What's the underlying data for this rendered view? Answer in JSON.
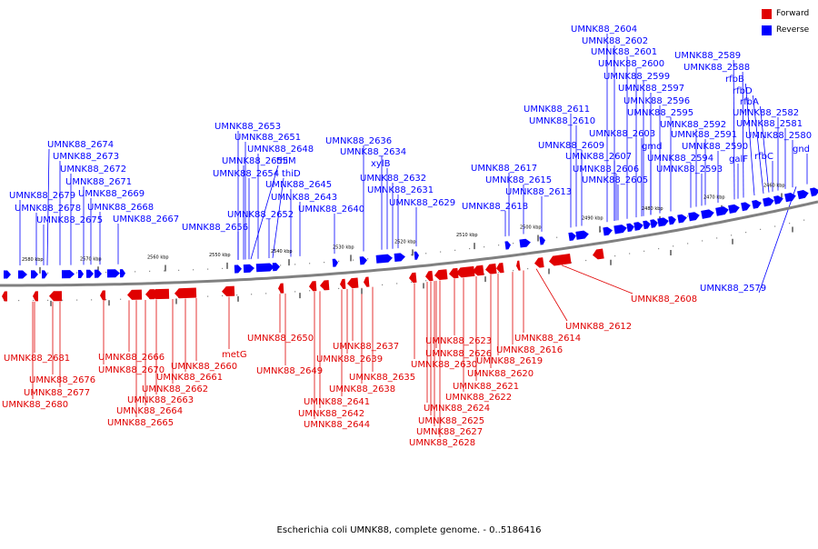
{
  "colors": {
    "forward": "#e00000",
    "reverse": "#0000ff",
    "backbone": "#808080",
    "tick": "#000000"
  },
  "legend": [
    {
      "label": "Forward",
      "color": "#e00000"
    },
    {
      "label": "Reverse",
      "color": "#0000ff"
    }
  ],
  "caption": "Escherichia coli UMNK88, complete genome. - 0..5186416",
  "scale_labels": [
    "2580 kbp",
    "2570 kbp",
    "2560 kbp",
    "2550 kbp",
    "2540 kbp",
    "2530 kbp",
    "2520 kbp",
    "2510 kbp",
    "2500 kbp",
    "2490 kbp",
    "2480 kbp",
    "2470 kbp",
    "2460 kbp"
  ],
  "reverse_labels": [
    "UMNK88_2674",
    "UMNK88_2673",
    "UMNK88_2672",
    "UMNK88_2671",
    "UMNK88_2679",
    "UMNK88_2669",
    "UMNK88_2678",
    "UMNK88_2668",
    "UMNK88_2675",
    "UMNK88_2667",
    "UMNK88_2653",
    "UMNK88_2651",
    "UMNK88_2648",
    "UMNK88_2655",
    "thiM",
    "UMNK88_2654",
    "thiD",
    "UMNK88_2645",
    "UMNK88_2643",
    "UMNK88_2652",
    "UMNK88_2656",
    "UMNK88_2640",
    "UMNK88_2636",
    "UMNK88_2634",
    "xylB",
    "UMNK88_2632",
    "UMNK88_2631",
    "UMNK88_2629",
    "UMNK88_2617",
    "UMNK88_2615",
    "UMNK88_2613",
    "UMNK88_2618",
    "UMNK88_2611",
    "UMNK88_2610",
    "UMNK88_2609",
    "UMNK88_2604",
    "UMNK88_2602",
    "UMNK88_2601",
    "UMNK88_2600",
    "UMNK88_2599",
    "UMNK88_2597",
    "UMNK88_2596",
    "UMNK88_2595",
    "UMNK88_2603",
    "gmd",
    "UMNK88_2607",
    "UMNK88_2606",
    "UMNK88_2605",
    "UMNK88_2589",
    "UMNK88_2588",
    "rfbB",
    "rfbD",
    "rfbA",
    "UMNK88_2582",
    "UMNK88_2592",
    "UMNK88_2581",
    "UMNK88_2591",
    "UMNK88_2580",
    "UMNK88_2590",
    "gnd",
    "UMNK88_2594",
    "galF",
    "rfbC",
    "UMNK88_2593",
    "UMNK88_2579"
  ],
  "forward_labels": [
    "UMNK88_2681",
    "UMNK88_2676",
    "UMNK88_2677",
    "UMNK88_2680",
    "UMNK88_2666",
    "UMNK88_2670",
    "UMNK88_2660",
    "UMNK88_2661",
    "UMNK88_2662",
    "UMNK88_2663",
    "UMNK88_2664",
    "UMNK88_2665",
    "metG",
    "UMNK88_2650",
    "UMNK88_2649",
    "UMNK88_2637",
    "UMNK88_2639",
    "UMNK88_2635",
    "UMNK88_2638",
    "UMNK88_2641",
    "UMNK88_2642",
    "UMNK88_2644",
    "UMNK88_2630",
    "UMNK88_2626",
    "UMNK88_2623",
    "UMNK88_2624",
    "UMNK88_2625",
    "UMNK88_2627",
    "UMNK88_2628",
    "UMNK88_2622",
    "UMNK88_2621",
    "UMNK88_2620",
    "UMNK88_2619",
    "UMNK88_2616",
    "UMNK88_2614",
    "UMNK88_2612",
    "UMNK88_2608"
  ]
}
